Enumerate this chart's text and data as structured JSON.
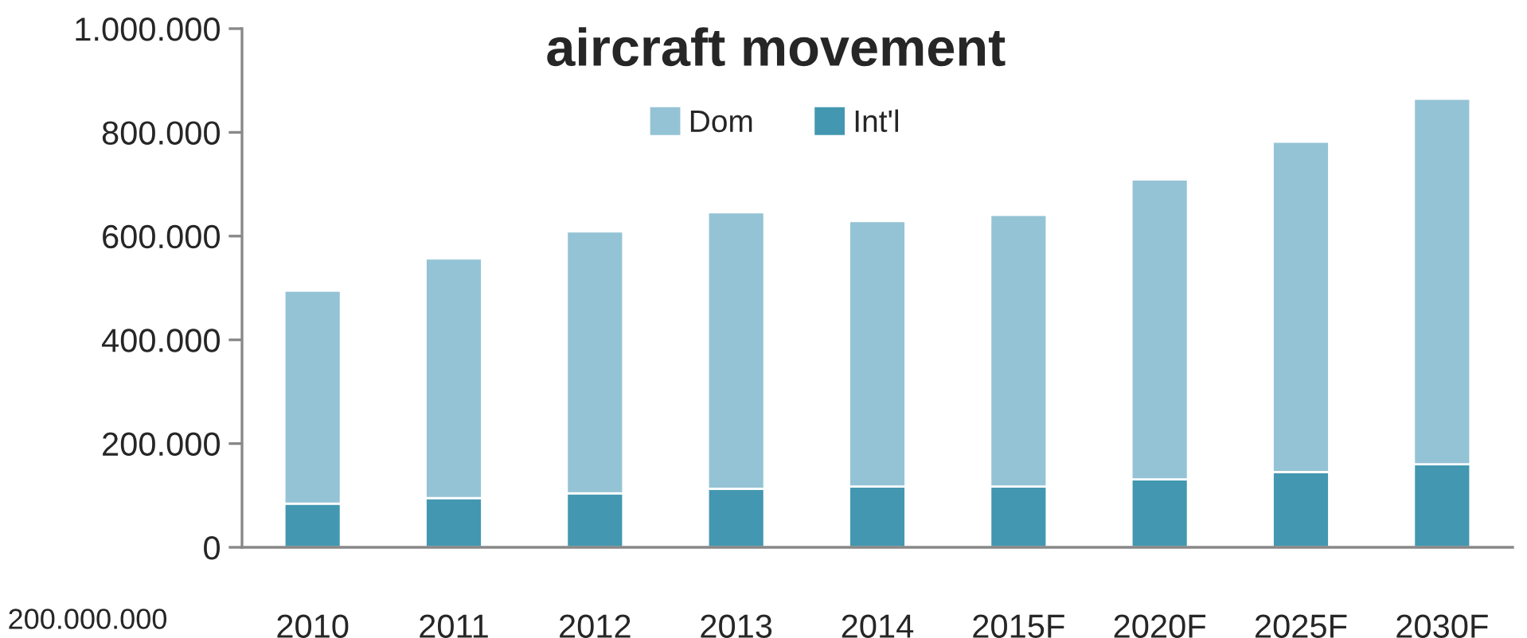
{
  "chart_data": {
    "type": "bar",
    "title": "aircraft movement",
    "stacked": true,
    "categories": [
      "2010",
      "2011",
      "2012",
      "2013",
      "2014",
      "2015F",
      "2020F",
      "2025F",
      "2030F"
    ],
    "series": [
      {
        "name": "Int'l",
        "color": "#4397b0",
        "values": [
          84000,
          95000,
          104000,
          113000,
          117000,
          117000,
          131000,
          145000,
          160000
        ]
      },
      {
        "name": "Dom",
        "color": "#94c3d5",
        "values": [
          411000,
          462000,
          505000,
          533000,
          512000,
          524000,
          578000,
          637000,
          705000
        ]
      }
    ],
    "ylim": [
      0,
      1000000
    ],
    "yticks": [
      {
        "value": 0,
        "label": "0"
      },
      {
        "value": 200000,
        "label": "200.000"
      },
      {
        "value": 400000,
        "label": "400.000"
      },
      {
        "value": 600000,
        "label": "600.000"
      },
      {
        "value": 800000,
        "label": "800.000"
      },
      {
        "value": 1000000,
        "label": "1.000.000"
      }
    ],
    "legend": "top",
    "grid": false,
    "annotations": [
      "200.000.000"
    ]
  }
}
